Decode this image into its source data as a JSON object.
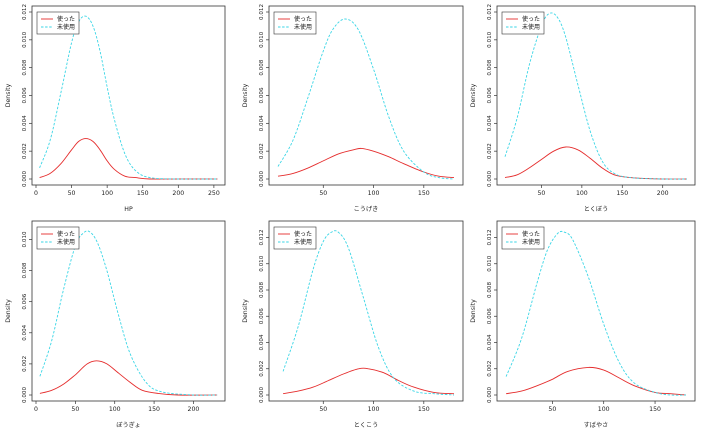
{
  "colors": {
    "used": "#e52d2d",
    "unused": "#3ad6e6",
    "axis": "#333333"
  },
  "legend": {
    "used": "使った",
    "unused": "未使用"
  },
  "chart_data": [
    {
      "type": "line",
      "xlabel": "HP",
      "ylabel": "Density",
      "xlim": [
        0,
        260
      ],
      "ylim": [
        0,
        0.012
      ],
      "xticks": [
        0,
        50,
        100,
        150,
        200,
        250
      ],
      "yticks": [
        0.0,
        0.002,
        0.004,
        0.006,
        0.008,
        0.01,
        0.012
      ],
      "ytick_labels": [
        "0.000",
        "0.002",
        "0.004",
        "0.006",
        "0.008",
        "0.010",
        "0.012"
      ],
      "series": [
        {
          "name": "使った",
          "line": "solid",
          "x": [
            5,
            20,
            35,
            50,
            60,
            70,
            80,
            90,
            100,
            110,
            125,
            140,
            160,
            200,
            255
          ],
          "y": [
            0.0001,
            0.0004,
            0.0011,
            0.0021,
            0.0027,
            0.0029,
            0.0027,
            0.0021,
            0.0013,
            0.0007,
            0.0002,
            0.0001,
            0,
            0,
            0
          ]
        },
        {
          "name": "未使用",
          "line": "dashed",
          "x": [
            5,
            20,
            35,
            50,
            60,
            70,
            80,
            90,
            100,
            110,
            125,
            140,
            160,
            200,
            255
          ],
          "y": [
            0.0008,
            0.0028,
            0.0062,
            0.0098,
            0.0113,
            0.0117,
            0.011,
            0.0092,
            0.0066,
            0.0043,
            0.0018,
            0.0006,
            0.0001,
            0,
            0
          ]
        }
      ]
    },
    {
      "type": "line",
      "xlabel": "こうげき",
      "ylabel": "Density",
      "xlim": [
        0,
        185
      ],
      "ylim": [
        0,
        0.012
      ],
      "xticks": [
        50,
        100,
        150
      ],
      "yticks": [
        0.0,
        0.002,
        0.004,
        0.006,
        0.008,
        0.01,
        0.012
      ],
      "ytick_labels": [
        "0.000",
        "0.002",
        "0.004",
        "0.006",
        "0.008",
        "0.010",
        "0.012"
      ],
      "series": [
        {
          "name": "使った",
          "line": "solid",
          "x": [
            5,
            20,
            35,
            50,
            65,
            80,
            88,
            100,
            115,
            130,
            150,
            165,
            180
          ],
          "y": [
            0.0002,
            0.0004,
            0.0008,
            0.0013,
            0.0018,
            0.0021,
            0.0022,
            0.002,
            0.0016,
            0.0011,
            0.0005,
            0.0002,
            0.0001
          ]
        },
        {
          "name": "未使用",
          "line": "dashed",
          "x": [
            5,
            20,
            35,
            50,
            60,
            72,
            85,
            100,
            115,
            130,
            150,
            165,
            180
          ],
          "y": [
            0.0009,
            0.0028,
            0.0059,
            0.0092,
            0.0108,
            0.0115,
            0.0107,
            0.0079,
            0.0045,
            0.002,
            0.0005,
            0.0001,
            0
          ]
        }
      ]
    },
    {
      "type": "line",
      "xlabel": "とくぼう",
      "ylabel": "Density",
      "xlim": [
        0,
        235
      ],
      "ylim": [
        0,
        0.012
      ],
      "xticks": [
        50,
        100,
        150,
        200
      ],
      "yticks": [
        0.0,
        0.002,
        0.004,
        0.006,
        0.008,
        0.01,
        0.012
      ],
      "ytick_labels": [
        "0.000",
        "0.002",
        "0.004",
        "0.006",
        "0.008",
        "0.010",
        "0.012"
      ],
      "series": [
        {
          "name": "使った",
          "line": "solid",
          "x": [
            5,
            20,
            35,
            50,
            65,
            80,
            95,
            110,
            125,
            140,
            160,
            200,
            230
          ],
          "y": [
            0.0001,
            0.0003,
            0.0008,
            0.0014,
            0.002,
            0.0023,
            0.0021,
            0.0015,
            0.0008,
            0.0003,
            0.0001,
            0,
            0
          ]
        },
        {
          "name": "未使用",
          "line": "dashed",
          "x": [
            5,
            20,
            35,
            50,
            60,
            70,
            80,
            95,
            110,
            125,
            140,
            160,
            200,
            230
          ],
          "y": [
            0.0016,
            0.0044,
            0.0082,
            0.011,
            0.0119,
            0.0116,
            0.0102,
            0.0068,
            0.0035,
            0.0013,
            0.0004,
            0.0001,
            0,
            0
          ]
        }
      ]
    },
    {
      "type": "line",
      "xlabel": "ぼうぎょ",
      "ylabel": "Density",
      "xlim": [
        0,
        235
      ],
      "ylim": [
        0,
        0.0108
      ],
      "xticks": [
        0,
        50,
        100,
        150,
        200
      ],
      "yticks": [
        0.0,
        0.002,
        0.004,
        0.006,
        0.008,
        0.01
      ],
      "ytick_labels": [
        "0.000",
        "0.002",
        "0.004",
        "0.006",
        "0.008",
        "0.010"
      ],
      "series": [
        {
          "name": "使った",
          "line": "solid",
          "x": [
            5,
            20,
            35,
            50,
            65,
            77,
            90,
            105,
            120,
            135,
            155,
            180,
            230
          ],
          "y": [
            0.0001,
            0.0003,
            0.0007,
            0.0013,
            0.002,
            0.0022,
            0.002,
            0.0014,
            0.0008,
            0.0003,
            0.0001,
            0,
            0
          ]
        },
        {
          "name": "未使用",
          "line": "dashed",
          "x": [
            5,
            20,
            35,
            50,
            60,
            68,
            78,
            90,
            105,
            120,
            140,
            160,
            200,
            230
          ],
          "y": [
            0.0012,
            0.0035,
            0.0068,
            0.0096,
            0.0104,
            0.0105,
            0.0098,
            0.008,
            0.0051,
            0.0026,
            0.0008,
            0.0002,
            0,
            0
          ]
        }
      ]
    },
    {
      "type": "line",
      "xlabel": "とくこう",
      "ylabel": "Density",
      "xlim": [
        0,
        185
      ],
      "ylim": [
        0,
        0.0128
      ],
      "xticks": [
        50,
        100,
        150
      ],
      "yticks": [
        0.0,
        0.002,
        0.004,
        0.006,
        0.008,
        0.01,
        0.012
      ],
      "ytick_labels": [
        "0.000",
        "0.002",
        "0.004",
        "0.006",
        "0.008",
        "0.010",
        "0.012"
      ],
      "series": [
        {
          "name": "使った",
          "line": "solid",
          "x": [
            10,
            25,
            40,
            55,
            70,
            85,
            95,
            110,
            125,
            140,
            160,
            180
          ],
          "y": [
            0.0001,
            0.0003,
            0.0006,
            0.0011,
            0.0016,
            0.002,
            0.002,
            0.0017,
            0.0011,
            0.0006,
            0.0002,
            0.0001
          ]
        },
        {
          "name": "未使用",
          "line": "dashed",
          "x": [
            10,
            25,
            40,
            50,
            58,
            65,
            75,
            90,
            105,
            120,
            140,
            160,
            180
          ],
          "y": [
            0.0018,
            0.0052,
            0.0096,
            0.0117,
            0.0124,
            0.0124,
            0.0112,
            0.0074,
            0.0036,
            0.0013,
            0.0003,
            0.0001,
            0
          ]
        }
      ]
    },
    {
      "type": "line",
      "xlabel": "すばやさ",
      "ylabel": "Density",
      "xlim": [
        0,
        185
      ],
      "ylim": [
        0,
        0.0128
      ],
      "xticks": [
        50,
        100,
        150
      ],
      "yticks": [
        0.0,
        0.002,
        0.004,
        0.006,
        0.008,
        0.01,
        0.012
      ],
      "ytick_labels": [
        "0.000",
        "0.002",
        "0.004",
        "0.006",
        "0.008",
        "0.010",
        "0.012"
      ],
      "series": [
        {
          "name": "使った",
          "line": "solid",
          "x": [
            5,
            20,
            35,
            50,
            65,
            85,
            100,
            115,
            130,
            150,
            165,
            180
          ],
          "y": [
            0.0001,
            0.0003,
            0.0007,
            0.0012,
            0.0018,
            0.0021,
            0.0019,
            0.0013,
            0.0007,
            0.0002,
            0.0001,
            0
          ]
        },
        {
          "name": "未使用",
          "line": "dashed",
          "x": [
            5,
            20,
            35,
            45,
            55,
            62,
            70,
            85,
            100,
            115,
            130,
            150,
            165,
            180
          ],
          "y": [
            0.0014,
            0.0043,
            0.0085,
            0.011,
            0.0123,
            0.0124,
            0.0118,
            0.009,
            0.0054,
            0.0025,
            0.0009,
            0.0002,
            0,
            0
          ]
        }
      ]
    }
  ]
}
